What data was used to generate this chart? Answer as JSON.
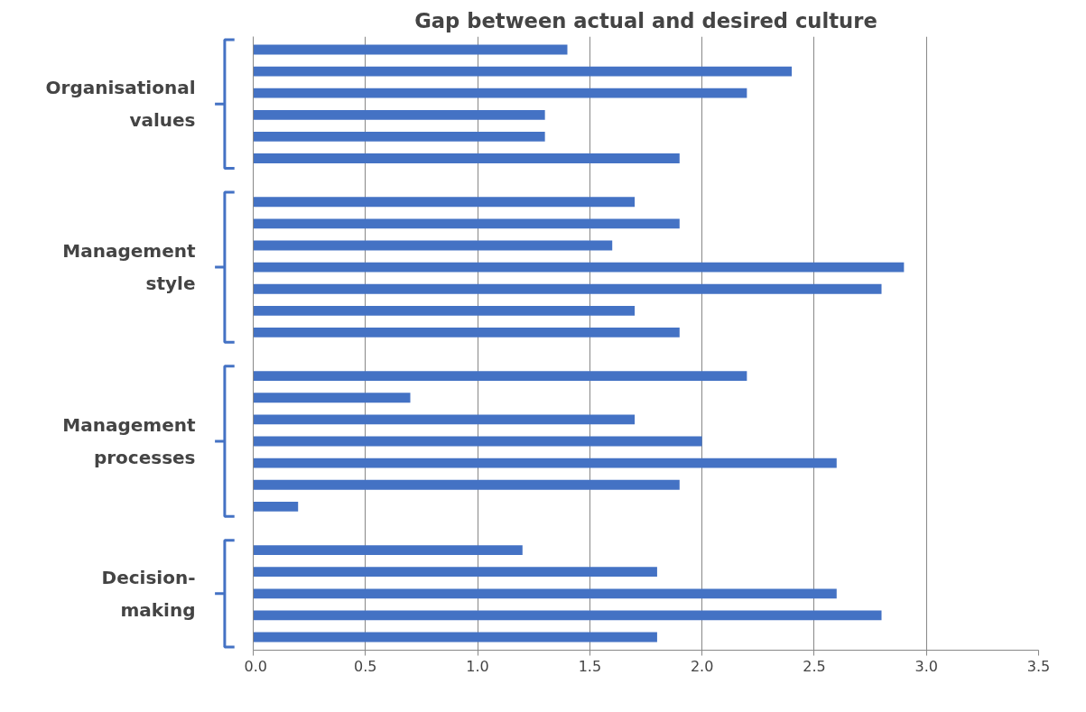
{
  "chart_data": {
    "type": "bar",
    "orientation": "horizontal",
    "title": "Gap between actual and desired culture",
    "categories": [
      null,
      null,
      null,
      null,
      null,
      null,
      null,
      null,
      null,
      null,
      null,
      null,
      null,
      null,
      null,
      null,
      null,
      null,
      null,
      null,
      null,
      null,
      null,
      null,
      null,
      null,
      null,
      null
    ],
    "values": [
      1.4,
      2.4,
      2.2,
      1.3,
      1.3,
      1.9,
      null,
      1.7,
      1.9,
      1.6,
      2.9,
      2.8,
      1.7,
      1.9,
      null,
      2.2,
      0.7,
      1.7,
      2.0,
      2.6,
      1.9,
      0.2,
      null,
      1.2,
      1.8,
      2.6,
      2.8,
      1.8
    ],
    "color": "#4472c4",
    "xlim": [
      0,
      3.5
    ],
    "xticks": [
      {
        "value": 0,
        "label": "0.0"
      },
      {
        "value": 0.5,
        "label": "0.5"
      },
      {
        "value": 1,
        "label": "1.0"
      },
      {
        "value": 1.5,
        "label": "1.5"
      },
      {
        "value": 2,
        "label": "2.0"
      },
      {
        "value": 2.5,
        "label": "2.5"
      },
      {
        "value": 3,
        "label": "3.0"
      },
      {
        "value": 3.5,
        "label": "3.5"
      }
    ],
    "grid": "x",
    "annotations": [
      "Organisational values",
      "Management style",
      "Management processes",
      "Decision-making"
    ]
  }
}
